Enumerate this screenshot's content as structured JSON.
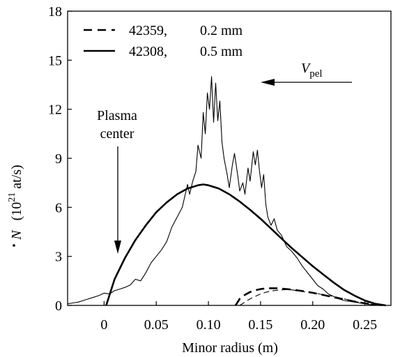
{
  "chart_data": {
    "type": "line",
    "xlabel": "Minor radius  (m)",
    "ylabel": {
      "symbol": "N",
      "unit_prefix": "(10",
      "unit_exp": "21",
      "unit_suffix": " at/s)"
    },
    "xlim": [
      -0.035,
      0.275
    ],
    "ylim": [
      0,
      18
    ],
    "x_ticks": [
      0,
      0.05,
      0.1,
      0.15,
      0.2,
      0.25
    ],
    "x_tick_labels": [
      "0",
      "0.05",
      "0.10",
      "0.15",
      "0.20",
      "0.25"
    ],
    "y_ticks": [
      0,
      3,
      6,
      9,
      12,
      15,
      18
    ],
    "y_tick_labels": [
      "0",
      "3",
      "6",
      "9",
      "12",
      "15",
      "18"
    ],
    "grid": false,
    "legend_position": "top-left",
    "legend": [
      {
        "shot": "42359,",
        "size": "0.2 mm",
        "style": "dashed"
      },
      {
        "shot": "42308,",
        "size": "0.5 mm",
        "style": "solid"
      }
    ],
    "annotations": {
      "plasma_center_line1": "Plasma",
      "plasma_center_line2": "center",
      "velocity_symbol": "V",
      "velocity_sub": "pel"
    },
    "series": [
      {
        "shot": "42308",
        "kind": "model",
        "style": "solid-thick",
        "x": [
          0.002,
          0.01,
          0.02,
          0.03,
          0.04,
          0.05,
          0.06,
          0.07,
          0.08,
          0.09,
          0.095,
          0.1,
          0.11,
          0.12,
          0.13,
          0.14,
          0.15,
          0.16,
          0.17,
          0.18,
          0.19,
          0.2,
          0.21,
          0.22,
          0.23,
          0.24,
          0.25,
          0.26,
          0.27
        ],
        "y": [
          0.0,
          1.6,
          2.9,
          4.0,
          4.9,
          5.7,
          6.3,
          6.8,
          7.15,
          7.35,
          7.4,
          7.35,
          7.15,
          6.8,
          6.35,
          5.85,
          5.3,
          4.7,
          4.1,
          3.5,
          2.95,
          2.4,
          1.9,
          1.4,
          0.95,
          0.6,
          0.3,
          0.1,
          0.0
        ]
      },
      {
        "shot": "42308",
        "kind": "measured",
        "style": "solid-thin",
        "x": [
          -0.035,
          -0.03,
          -0.025,
          -0.02,
          -0.015,
          -0.01,
          -0.005,
          0.0,
          0.005,
          0.01,
          0.015,
          0.02,
          0.025,
          0.03,
          0.035,
          0.04,
          0.045,
          0.05,
          0.055,
          0.06,
          0.065,
          0.07,
          0.075,
          0.08,
          0.082,
          0.085,
          0.088,
          0.09,
          0.093,
          0.095,
          0.097,
          0.099,
          0.101,
          0.103,
          0.105,
          0.107,
          0.109,
          0.111,
          0.113,
          0.115,
          0.118,
          0.12,
          0.123,
          0.125,
          0.128,
          0.13,
          0.133,
          0.135,
          0.138,
          0.14,
          0.143,
          0.145,
          0.147,
          0.149,
          0.151,
          0.153,
          0.155,
          0.157,
          0.16,
          0.163,
          0.166,
          0.17,
          0.175,
          0.18,
          0.185,
          0.19,
          0.195,
          0.2,
          0.205,
          0.21,
          0.215,
          0.22,
          0.225,
          0.23,
          0.235,
          0.24,
          0.245,
          0.25,
          0.255,
          0.26,
          0.265,
          0.27
        ],
        "y": [
          0.1,
          0.15,
          0.2,
          0.3,
          0.4,
          0.5,
          0.6,
          0.75,
          0.7,
          0.9,
          1.0,
          1.1,
          1.25,
          1.6,
          1.5,
          2.0,
          2.6,
          3.0,
          3.4,
          3.9,
          4.8,
          5.4,
          6.0,
          7.4,
          6.8,
          7.6,
          8.2,
          9.8,
          9.0,
          11.8,
          10.5,
          13.0,
          12.0,
          14.0,
          11.2,
          13.6,
          11.3,
          12.5,
          10.0,
          9.0,
          8.0,
          7.2,
          8.6,
          9.3,
          8.0,
          7.0,
          7.5,
          6.8,
          8.4,
          7.6,
          9.4,
          8.6,
          9.5,
          8.2,
          7.2,
          8.0,
          6.2,
          5.4,
          4.9,
          5.3,
          4.6,
          4.3,
          3.6,
          3.3,
          2.9,
          2.4,
          2.0,
          1.6,
          1.2,
          1.0,
          0.7,
          0.55,
          0.4,
          0.3,
          0.25,
          0.2,
          0.15,
          0.1,
          0.05,
          0.03,
          0.02,
          0.0
        ]
      },
      {
        "shot": "42359",
        "kind": "model",
        "style": "dashed-thick",
        "x": [
          0.126,
          0.13,
          0.135,
          0.14,
          0.145,
          0.15,
          0.155,
          0.16,
          0.165,
          0.17,
          0.18,
          0.19,
          0.2,
          0.21,
          0.22,
          0.23,
          0.24,
          0.25,
          0.26,
          0.27
        ],
        "y": [
          0.0,
          0.4,
          0.65,
          0.82,
          0.93,
          1.0,
          1.04,
          1.05,
          1.05,
          1.03,
          0.97,
          0.88,
          0.77,
          0.64,
          0.5,
          0.37,
          0.24,
          0.13,
          0.05,
          0.0
        ]
      },
      {
        "shot": "42359",
        "kind": "measured",
        "style": "dashed-thin",
        "x": [
          0.13,
          0.135,
          0.14,
          0.145,
          0.15,
          0.155,
          0.16,
          0.165,
          0.17,
          0.175,
          0.18,
          0.19,
          0.2,
          0.21,
          0.22,
          0.23,
          0.24,
          0.25,
          0.26,
          0.27
        ],
        "y": [
          0.0,
          0.2,
          0.4,
          0.55,
          0.7,
          0.8,
          0.88,
          0.92,
          0.95,
          0.97,
          0.95,
          0.85,
          0.78,
          0.65,
          0.55,
          0.4,
          0.25,
          0.12,
          0.04,
          0.0
        ]
      }
    ]
  }
}
